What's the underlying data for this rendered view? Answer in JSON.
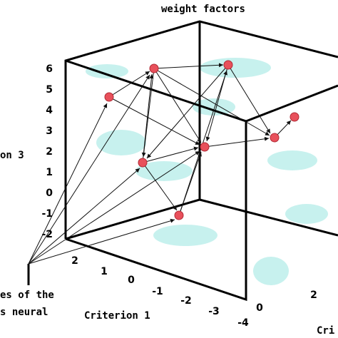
{
  "title": "weight factors",
  "axes": {
    "vertical_label": "on 3",
    "vertical_ticks": [
      "6",
      "5",
      "4",
      "3",
      "2",
      "1",
      "0",
      "-1",
      "-2"
    ],
    "depth_label": "Criterion 1",
    "depth_ticks": [
      "2",
      "1",
      "0",
      "-1",
      "-2",
      "-3",
      "-4"
    ],
    "horizontal_label": "Cri",
    "horizontal_ticks": [
      "0",
      "2"
    ]
  },
  "annotation": [
    "es of the",
    "s neural"
  ]
}
